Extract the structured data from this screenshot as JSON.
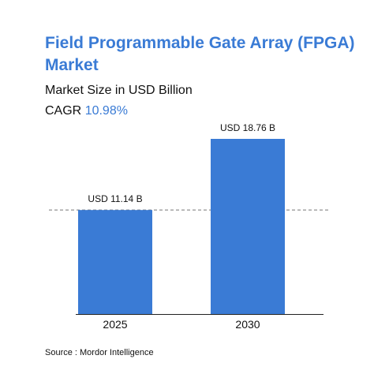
{
  "header": {
    "title": "Field Programmable Gate Array (FPGA) Market",
    "subtitle": "Market Size in USD Billion",
    "cagr_label": "CAGR",
    "cagr_value": "10.98%"
  },
  "footer": {
    "source": "Source : Mordor Intelligence"
  },
  "colors": {
    "bar": "#3a7bd5",
    "title": "#3a7bd5",
    "text": "#111111",
    "dashed_line": "#777777"
  },
  "chart_data": {
    "type": "bar",
    "categories": [
      "2025",
      "2030"
    ],
    "values": [
      11.14,
      18.76
    ],
    "data_labels": [
      "USD 11.14 B",
      "USD 18.76 B"
    ],
    "unit": "USD Billion",
    "reference_line": 11.14,
    "grid": false,
    "legend": "none"
  }
}
